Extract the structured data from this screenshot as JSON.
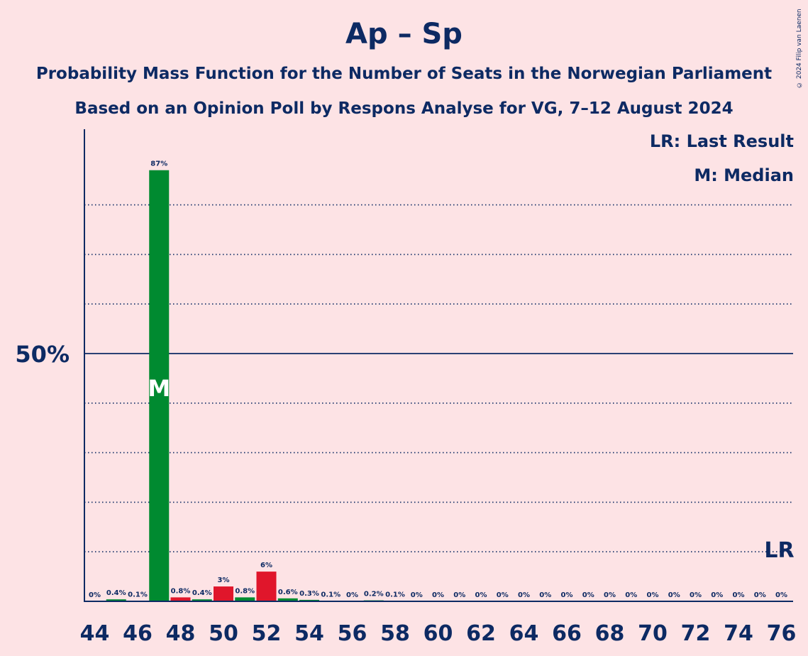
{
  "title": "Ap – Sp",
  "subtitle": "Probability Mass Function for the Number of Seats in the Norwegian Parliament",
  "subtitle2": "Based on an Opinion Poll by Respons Analyse for VG, 7–12 August 2024",
  "copyright": "© 2024 Filip van Laenen",
  "legend": {
    "last_result": "LR: Last Result",
    "median": "M: Median"
  },
  "colors": {
    "background": "#fde3e5",
    "text": "#0d2a63",
    "green": "#008a30",
    "red": "#e0162b"
  },
  "chart_data": {
    "type": "bar",
    "x": [
      44,
      45,
      46,
      47,
      48,
      49,
      50,
      51,
      52,
      53,
      54,
      55,
      56,
      57,
      58,
      59,
      60,
      61,
      62,
      63,
      64,
      65,
      66,
      67,
      68,
      69,
      70,
      71,
      72,
      73,
      74,
      75,
      76
    ],
    "values": [
      0,
      0.4,
      0.1,
      87,
      0.8,
      0.4,
      3,
      0.8,
      6,
      0.6,
      0.3,
      0.1,
      0,
      0.2,
      0.1,
      0,
      0,
      0,
      0,
      0,
      0,
      0,
      0,
      0,
      0,
      0,
      0,
      0,
      0,
      0,
      0,
      0,
      0
    ],
    "labels": [
      "0%",
      "0.4%",
      "0.1%",
      "87%",
      "0.8%",
      "0.4%",
      "3%",
      "0.8%",
      "6%",
      "0.6%",
      "0.3%",
      "0.1%",
      "0%",
      "0.2%",
      "0.1%",
      "0%",
      "0%",
      "0%",
      "0%",
      "0%",
      "0%",
      "0%",
      "0%",
      "0%",
      "0%",
      "0%",
      "0%",
      "0%",
      "0%",
      "0%",
      "0%",
      "0%",
      "0%"
    ],
    "bar_colors": [
      "green",
      "green",
      "green",
      "green",
      "red",
      "green",
      "red",
      "green",
      "red",
      "green",
      "green",
      "green",
      "green",
      "green",
      "green",
      "green",
      "green",
      "green",
      "green",
      "green",
      "green",
      "green",
      "green",
      "green",
      "green",
      "green",
      "green",
      "green",
      "green",
      "green",
      "green",
      "green",
      "green"
    ],
    "x_tick_labels": [
      "44",
      "46",
      "48",
      "50",
      "52",
      "54",
      "56",
      "58",
      "60",
      "62",
      "64",
      "66",
      "68",
      "70",
      "72",
      "74",
      "76"
    ],
    "y_tick_label": "50%",
    "ylim": [
      0,
      100
    ],
    "gridlines": [
      10,
      20,
      30,
      40,
      60,
      70,
      80
    ],
    "majority_line": 50,
    "median_seat": 47,
    "median_marker": "M",
    "last_result_seat": 76,
    "last_result_marker": "LR"
  }
}
